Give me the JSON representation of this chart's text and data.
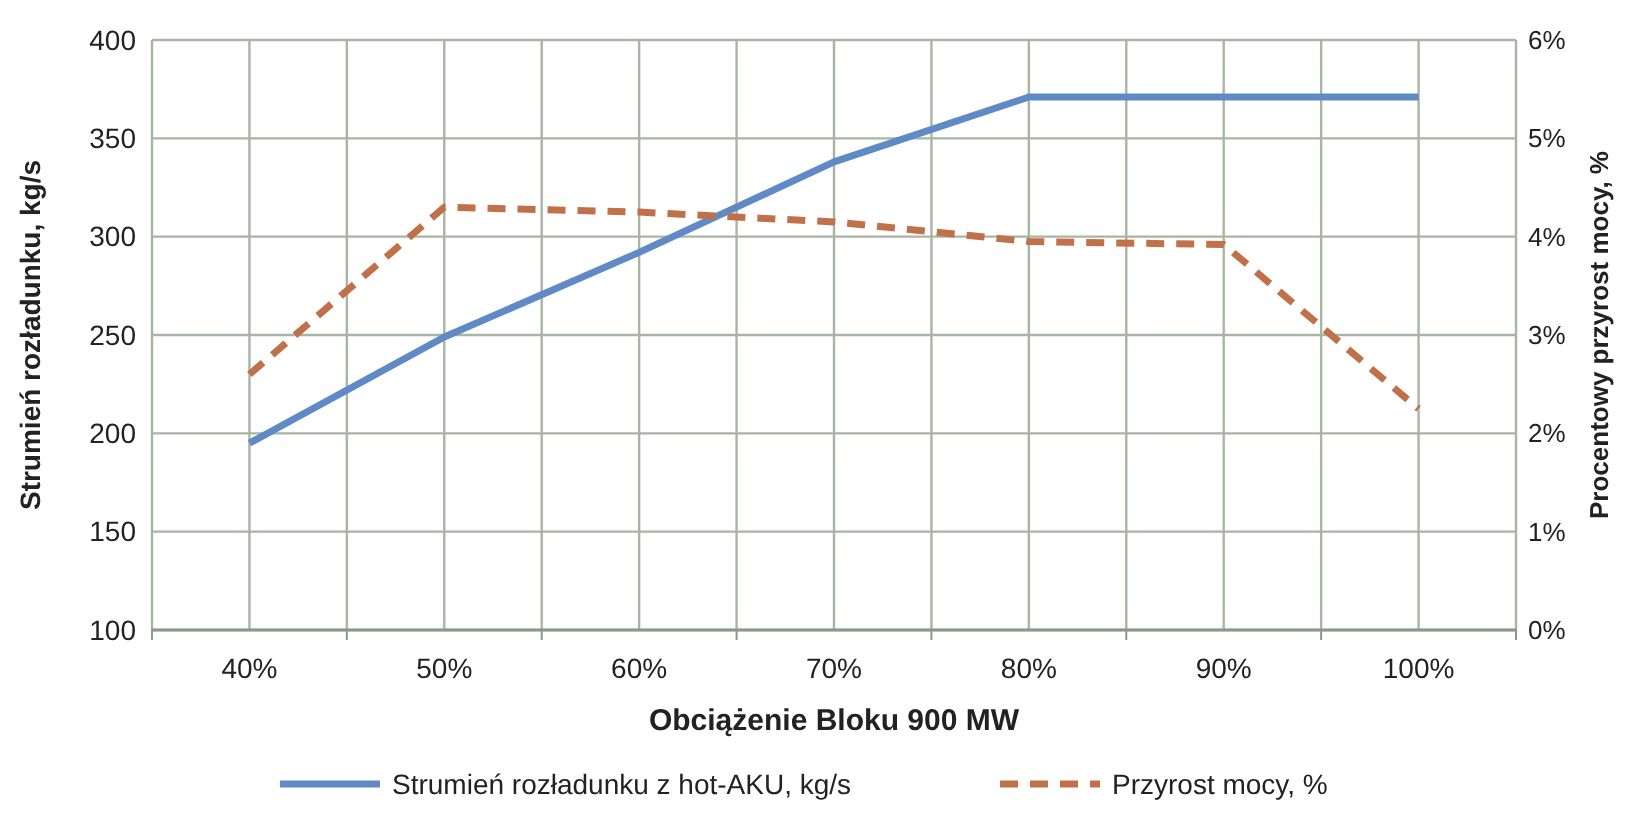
{
  "chart_data": {
    "type": "line",
    "xlabel": "Obciążenie Bloku 900 MW",
    "ylabel": "Strumień rozładunku, kg/s",
    "y2label": "Procentowy przyrost mocy, %",
    "categories": [
      "40%",
      "50%",
      "60%",
      "70%",
      "80%",
      "90%",
      "100%"
    ],
    "series": [
      {
        "name": "Strumień rozładunku z hot-AKU, kg/s",
        "color": "#5f8ac6",
        "values": [
          195,
          249,
          292,
          338,
          371,
          371,
          371
        ],
        "line_style": "solid"
      },
      {
        "name": "Przyrost mocy, %",
        "color": "#c0714a",
        "values": [
          2.6,
          4.3,
          4.25,
          4.15,
          3.95,
          3.92,
          2.25
        ],
        "axis": "y2",
        "line_style": "dashed"
      }
    ],
    "ylim": [
      100,
      400
    ],
    "yticks": [
      100,
      150,
      200,
      250,
      300,
      350,
      400
    ],
    "y2lim": [
      0,
      6
    ],
    "y2ticks": [
      {
        "value": 0,
        "label": "0%"
      },
      {
        "value": 1,
        "label": "1%"
      },
      {
        "value": 2,
        "label": "2%"
      },
      {
        "value": 3,
        "label": "3%"
      },
      {
        "value": 4,
        "label": "4%"
      },
      {
        "value": 5,
        "label": "5%"
      },
      {
        "value": 6,
        "label": "6%"
      }
    ],
    "grid": true,
    "legend": "bottom",
    "marker": "none"
  }
}
